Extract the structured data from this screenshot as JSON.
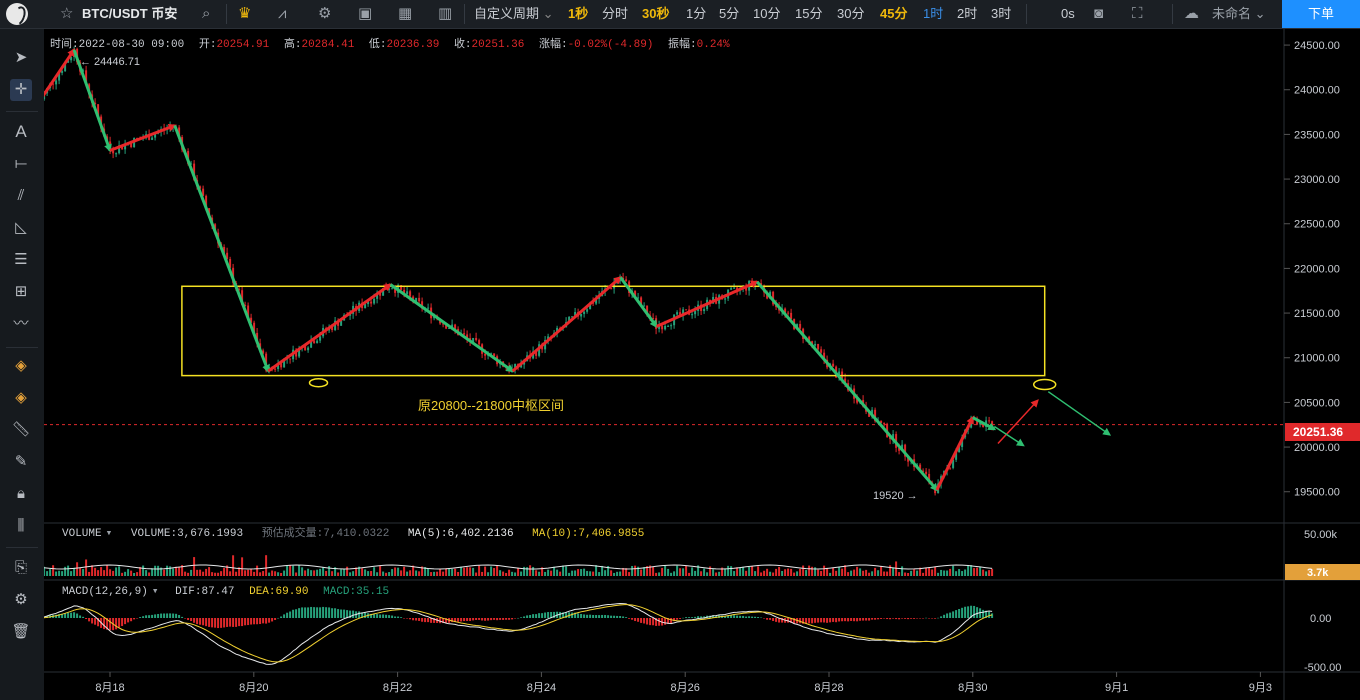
{
  "toolbar": {
    "symbol": "BTC/USDT 币安",
    "custom_period": "自定义周期",
    "timeframes": [
      {
        "label": "1秒",
        "style": "hl"
      },
      {
        "label": "分时",
        "style": ""
      },
      {
        "label": "30秒",
        "style": "hl"
      },
      {
        "label": "1分",
        "style": ""
      },
      {
        "label": "5分",
        "style": ""
      },
      {
        "label": "10分",
        "style": ""
      },
      {
        "label": "15分",
        "style": ""
      },
      {
        "label": "30分",
        "style": ""
      },
      {
        "label": "45分",
        "style": "hl"
      },
      {
        "label": "1时",
        "style": "sel"
      },
      {
        "label": "2时",
        "style": ""
      },
      {
        "label": "3时",
        "style": ""
      }
    ],
    "countdown": "0s",
    "layout_name": "未命名",
    "order_button": "下单"
  },
  "info": {
    "time_label": "时间:",
    "time_value": "2022-08-30 09:00",
    "open_label": "开:",
    "open_value": "20254.91",
    "high_label": "高:",
    "high_value": "20284.41",
    "low_label": "低:",
    "low_value": "20236.39",
    "close_label": "收:",
    "close_value": "20251.36",
    "change_label": "涨幅:",
    "change_value": "-0.02%(-4.89)",
    "amp_label": "振幅:",
    "amp_value": "0.24%"
  },
  "annotations": {
    "high_mark": "← 24446.71",
    "low_mark": "19520 →",
    "zone_text": "原20800--21800中枢区间",
    "current_price": "20251.36"
  },
  "volume_panel": {
    "name": "VOLUME",
    "vol_label": "VOLUME:",
    "vol_value": "3,676.1993",
    "est_label": "预估成交量:",
    "est_value": "7,410.0322",
    "ma5_label": "MA(5):",
    "ma5_value": "6,402.2136",
    "ma10_label": "MA(10):",
    "ma10_value": "7,406.9855",
    "axis_top": "50.00k",
    "current": "3.7k"
  },
  "macd_panel": {
    "name": "MACD(12,26,9)",
    "dif_label": "DIF:",
    "dif_value": "87.47",
    "dea_label": "DEA:",
    "dea_value": "69.90",
    "macd_label": "MACD:",
    "macd_value": "35.15",
    "axis": [
      "0.00",
      "-500.00"
    ]
  },
  "colors": {
    "up": "#26a17b",
    "down": "#e0292b",
    "zone": "#f5e223",
    "accent": "#f0b90b",
    "select": "#3a8ee6"
  },
  "chart_data": {
    "type": "candlestick",
    "price_axis": [
      "24500.00",
      "24000.00",
      "23500.00",
      "23000.00",
      "22500.00",
      "22000.00",
      "21500.00",
      "21000.00",
      "20500.00",
      "20000.00",
      "19500.00"
    ],
    "ylim": [
      19150,
      24680
    ],
    "x_labels": [
      "8月18",
      "8月20",
      "8月22",
      "8月24",
      "8月26",
      "8月28",
      "8月30",
      "9月1",
      "9月3"
    ],
    "zone": {
      "low": 20800,
      "high": 21800
    },
    "path_points": [
      {
        "day": 17.0,
        "price": 23850
      },
      {
        "day": 17.5,
        "price": 24446.71
      },
      {
        "day": 18.0,
        "price": 23320
      },
      {
        "day": 18.9,
        "price": 23600
      },
      {
        "day": 20.2,
        "price": 20850
      },
      {
        "day": 21.9,
        "price": 21820
      },
      {
        "day": 23.6,
        "price": 20850
      },
      {
        "day": 25.1,
        "price": 21900
      },
      {
        "day": 25.6,
        "price": 21350
      },
      {
        "day": 27.0,
        "price": 21850
      },
      {
        "day": 29.5,
        "price": 19520
      },
      {
        "day": 30.0,
        "price": 20330
      },
      {
        "day": 30.3,
        "price": 20200
      }
    ]
  }
}
